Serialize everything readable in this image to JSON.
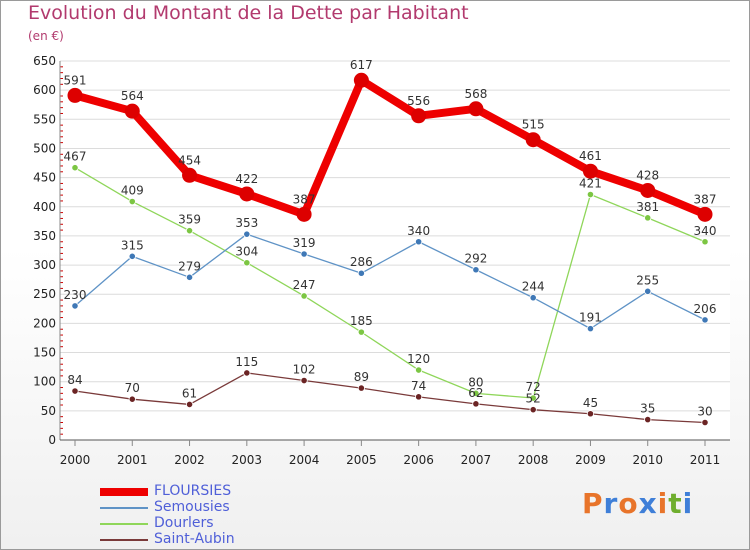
{
  "header": {
    "title": "Evolution du Montant de la Dette par Habitant",
    "unit": "(en €)"
  },
  "logo": {
    "text": "Proxiti",
    "letter_colors": [
      "#e8742a",
      "#3f7fd8",
      "#e8742a",
      "#3f7fd8",
      "#e8742a",
      "#6fae2e",
      "#3f7fd8"
    ]
  },
  "chart_data": {
    "type": "line",
    "title": "Evolution du Montant de la Dette par Habitant",
    "subtitle": "(en €)",
    "xlabel": "",
    "ylabel": "",
    "x": [
      "2000",
      "2001",
      "2002",
      "2003",
      "2004",
      "2005",
      "2006",
      "2007",
      "2008",
      "2009",
      "2010",
      "2011"
    ],
    "ylim": [
      0,
      650
    ],
    "yticks": [
      0,
      50,
      100,
      150,
      200,
      250,
      300,
      350,
      400,
      450,
      500,
      550,
      600,
      650
    ],
    "grid": "horizontal",
    "legend_position": "bottom-left",
    "series": [
      {
        "name": "FLOURSIES",
        "color": "#ee0000",
        "marker_color": "#dd0000",
        "values": [
          591,
          564,
          454,
          422,
          387,
          617,
          556,
          568,
          515,
          461,
          428,
          387
        ]
      },
      {
        "name": "Semousies",
        "color": "#5f93c6",
        "marker_color": "#3f78b6",
        "values": [
          230,
          315,
          279,
          353,
          319,
          286,
          340,
          292,
          244,
          191,
          255,
          206
        ]
      },
      {
        "name": "Dourlers",
        "color": "#8fd65a",
        "marker_color": "#7cc643",
        "values": [
          467,
          409,
          359,
          304,
          247,
          185,
          120,
          80,
          72,
          421,
          381,
          340
        ]
      },
      {
        "name": "Saint-Aubin",
        "color": "#7a3a3a",
        "marker_color": "#6b2424",
        "values": [
          84,
          70,
          61,
          115,
          102,
          89,
          74,
          62,
          52,
          45,
          35,
          30
        ]
      }
    ]
  }
}
